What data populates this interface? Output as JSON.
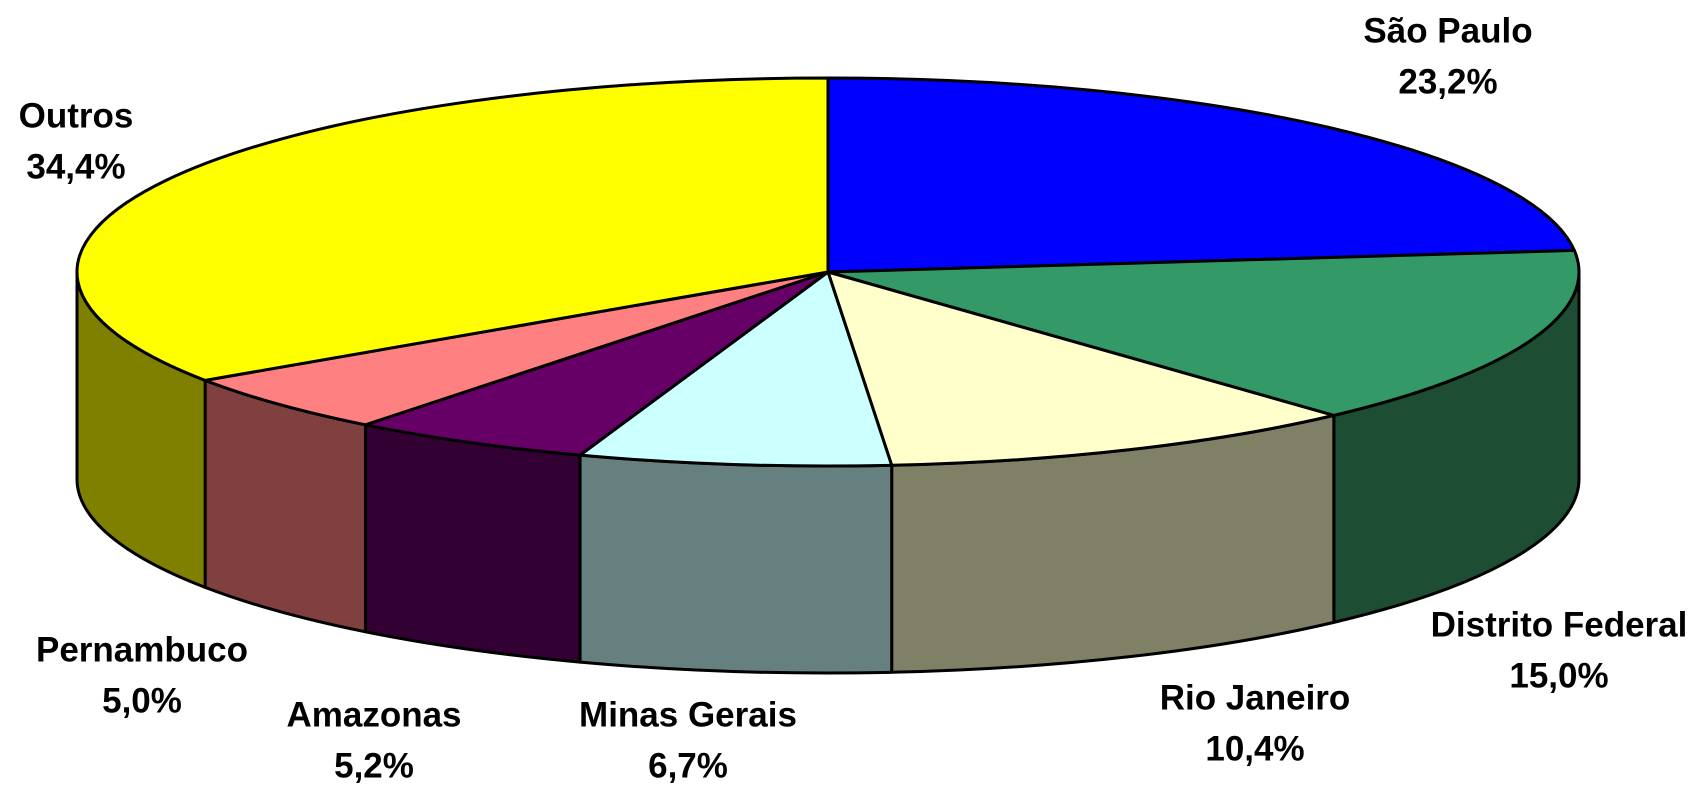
{
  "chart_data": {
    "type": "pie",
    "categories": [
      "São Paulo",
      "Distrito Federal",
      "Rio Janeiro",
      "Minas Gerais",
      "Amazonas",
      "Pernambuco",
      "Outros"
    ],
    "values": [
      23.2,
      15.0,
      10.4,
      6.7,
      5.2,
      5.0,
      34.4
    ],
    "value_labels": [
      "23,2%",
      "15,0%",
      "10,4%",
      "6,7%",
      "5,2%",
      "5,0%",
      "34,4%"
    ],
    "colors": [
      "#0000ff",
      "#339966",
      "#ffffcc",
      "#ccffff",
      "#660066",
      "#ff8080",
      "#ffff00"
    ],
    "side_colors": [
      "#00007f",
      "#1d4d33",
      "#808066",
      "#668080",
      "#330033",
      "#804040",
      "#808000"
    ]
  }
}
